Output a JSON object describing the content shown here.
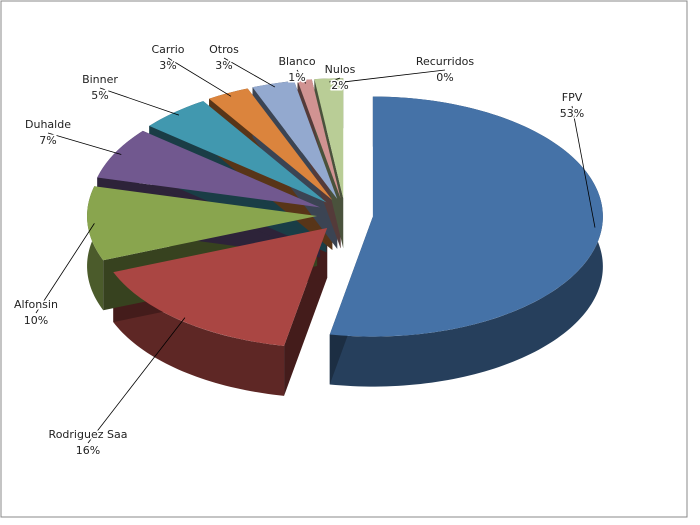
{
  "chart_data": {
    "type": "pie",
    "categories": [
      "FPV",
      "Rodriguez Saa",
      "Alfonsin",
      "Duhalde",
      "Binner",
      "Carrio",
      "Otros",
      "Blanco",
      "Nulos",
      "Recurridos"
    ],
    "values": [
      53,
      16,
      10,
      7,
      5,
      3,
      3,
      1,
      2,
      0
    ],
    "value_labels": [
      "53%",
      "16%",
      "10%",
      "7%",
      "5%",
      "3%",
      "3%",
      "1%",
      "2%",
      "0%"
    ],
    "colors": [
      "#4572a7",
      "#aa4643",
      "#89a54e",
      "#71588f",
      "#4198af",
      "#db843d",
      "#93a9cf",
      "#d19392",
      "#b9cd96",
      "#a99bbd"
    ]
  }
}
